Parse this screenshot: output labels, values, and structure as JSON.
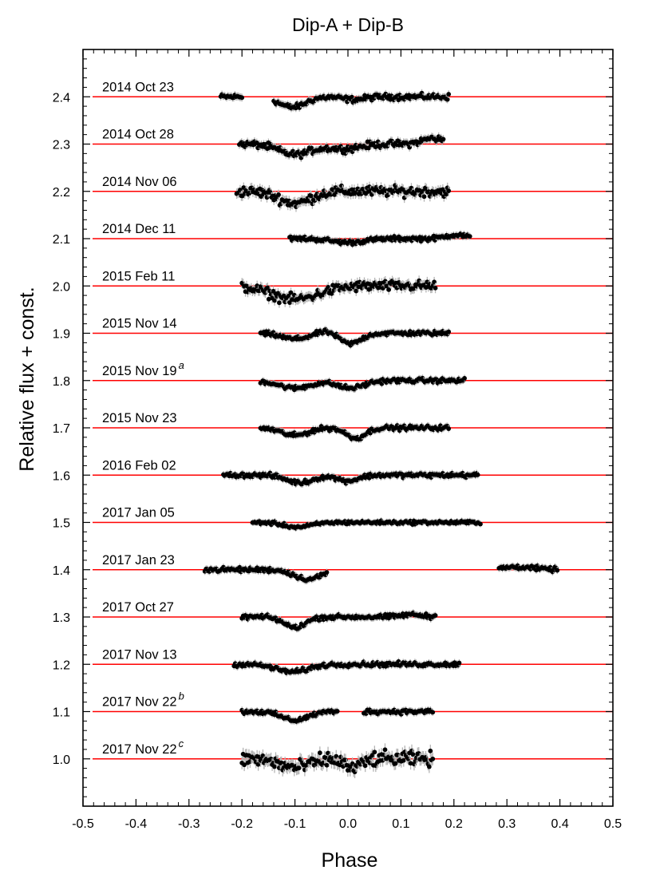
{
  "chart_data": {
    "type": "scatter",
    "title": "Dip-A + Dip-B",
    "xlabel": "Phase",
    "ylabel": "Relative flux + const.",
    "xlim": [
      -0.5,
      0.5
    ],
    "ylim": [
      0.9,
      2.5
    ],
    "x_ticks": [
      "-0.5",
      "-0.4",
      "-0.3",
      "-0.2",
      "-0.1",
      "0.0",
      "0.1",
      "0.2",
      "0.3",
      "0.4",
      "0.5"
    ],
    "y_ticks": [
      "1.0",
      "1.1",
      "1.2",
      "1.3",
      "1.4",
      "1.5",
      "1.6",
      "1.7",
      "1.8",
      "1.9",
      "2.0",
      "2.1",
      "2.2",
      "2.3",
      "2.4"
    ],
    "colors": {
      "model": "#ff0000",
      "points": "#000000",
      "errorbars": "#b4b4b4"
    },
    "grid": false,
    "legend": "none",
    "series": [
      {
        "name": "2014 Oct 23",
        "sup": "",
        "offset": 2.4,
        "noise": 0.005,
        "segments": [
          [
            -0.24,
            -0.2
          ],
          [
            -0.14,
            0.19
          ]
        ],
        "dips": [
          [
            -0.105,
            -0.022,
            0.025
          ],
          [
            0.01,
            -0.006,
            0.02
          ]
        ]
      },
      {
        "name": "2014 Oct 28",
        "sup": "",
        "offset": 2.3,
        "noise": 0.006,
        "segments": [
          [
            -0.205,
            0.18
          ]
        ],
        "dips": [
          [
            -0.1,
            -0.022,
            0.03
          ],
          [
            -0.01,
            -0.01,
            0.03
          ],
          [
            0.16,
            0.012,
            0.02
          ]
        ]
      },
      {
        "name": "2014 Nov 06",
        "sup": "",
        "offset": 2.2,
        "noise": 0.009,
        "segments": [
          [
            -0.21,
            0.19
          ]
        ],
        "dips": [
          [
            -0.1,
            -0.025,
            0.03
          ]
        ]
      },
      {
        "name": "2014 Dec 11",
        "sup": "",
        "offset": 2.1,
        "noise": 0.004,
        "segments": [
          [
            -0.11,
            0.23
          ]
        ],
        "dips": [
          [
            0.0,
            -0.008,
            0.03
          ],
          [
            0.205,
            0.008,
            0.02
          ]
        ]
      },
      {
        "name": "2015 Feb 11",
        "sup": "",
        "offset": 2.0,
        "noise": 0.009,
        "segments": [
          [
            -0.2,
            0.165
          ]
        ],
        "dips": [
          [
            -0.1,
            -0.028,
            0.045
          ]
        ]
      },
      {
        "name": "2015 Nov 14",
        "sup": "",
        "offset": 1.9,
        "noise": 0.004,
        "segments": [
          [
            -0.165,
            0.19
          ]
        ],
        "dips": [
          [
            -0.1,
            -0.012,
            0.025
          ],
          [
            0.005,
            -0.022,
            0.02
          ],
          [
            -0.04,
            0.005,
            0.015
          ]
        ]
      },
      {
        "name": "2015 Nov 19",
        "sup": "a",
        "offset": 1.8,
        "noise": 0.004,
        "segments": [
          [
            -0.165,
            0.22
          ]
        ],
        "dips": [
          [
            -0.1,
            -0.016,
            0.03
          ],
          [
            0.005,
            -0.016,
            0.025
          ]
        ]
      },
      {
        "name": "2015 Nov 23",
        "sup": "",
        "offset": 1.7,
        "noise": 0.004,
        "segments": [
          [
            -0.165,
            0.19
          ]
        ],
        "dips": [
          [
            -0.1,
            -0.016,
            0.025
          ],
          [
            0.015,
            -0.022,
            0.018
          ]
        ]
      },
      {
        "name": "2016 Feb 02",
        "sup": "",
        "offset": 1.6,
        "noise": 0.004,
        "segments": [
          [
            -0.235,
            0.245
          ]
        ],
        "dips": [
          [
            -0.09,
            -0.016,
            0.025
          ],
          [
            0.0,
            -0.012,
            0.02
          ]
        ]
      },
      {
        "name": "2017 Jan 05",
        "sup": "",
        "offset": 1.5,
        "noise": 0.003,
        "segments": [
          [
            -0.18,
            0.25
          ]
        ],
        "dips": [
          [
            -0.095,
            -0.01,
            0.025
          ]
        ]
      },
      {
        "name": "2017 Jan 23",
        "sup": "",
        "offset": 1.4,
        "noise": 0.004,
        "segments": [
          [
            -0.27,
            -0.04
          ],
          [
            0.285,
            0.395
          ]
        ],
        "dips": [
          [
            -0.075,
            -0.02,
            0.025
          ],
          [
            0.32,
            0.006,
            0.03
          ]
        ]
      },
      {
        "name": "2017 Oct 27",
        "sup": "",
        "offset": 1.3,
        "noise": 0.004,
        "segments": [
          [
            -0.2,
            0.165
          ]
        ],
        "dips": [
          [
            -0.1,
            -0.022,
            0.02
          ],
          [
            0.12,
            0.005,
            0.02
          ]
        ]
      },
      {
        "name": "2017 Nov 13",
        "sup": "",
        "offset": 1.2,
        "noise": 0.004,
        "segments": [
          [
            -0.215,
            0.21
          ]
        ],
        "dips": [
          [
            -0.105,
            -0.016,
            0.03
          ]
        ]
      },
      {
        "name": "2017 Nov 22",
        "sup": "b",
        "offset": 1.1,
        "noise": 0.004,
        "segments": [
          [
            -0.2,
            -0.02
          ],
          [
            0.03,
            0.16
          ]
        ],
        "dips": [
          [
            -0.1,
            -0.018,
            0.025
          ]
        ]
      },
      {
        "name": "2017 Nov 22",
        "sup": "c",
        "offset": 1.0,
        "noise": 0.013,
        "segments": [
          [
            -0.2,
            0.16
          ]
        ],
        "dips": [
          [
            -0.1,
            -0.018,
            0.03
          ],
          [
            0.01,
            -0.02,
            0.015
          ]
        ]
      }
    ]
  }
}
